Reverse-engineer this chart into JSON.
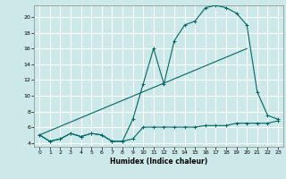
{
  "title": "",
  "xlabel": "Humidex (Indice chaleur)",
  "bg_color": "#cce8e8",
  "grid_color": "#ffffff",
  "line_color": "#006666",
  "xlim": [
    -0.5,
    23.5
  ],
  "ylim": [
    3.5,
    21.5
  ],
  "yticks": [
    4,
    6,
    8,
    10,
    12,
    14,
    16,
    18,
    20
  ],
  "xticks": [
    0,
    1,
    2,
    3,
    4,
    5,
    6,
    7,
    8,
    9,
    10,
    11,
    12,
    13,
    14,
    15,
    16,
    17,
    18,
    19,
    20,
    21,
    22,
    23
  ],
  "series1_x": [
    0,
    1,
    2,
    3,
    4,
    5,
    6,
    7,
    8,
    9,
    10,
    11,
    12,
    13,
    14,
    15,
    16,
    17,
    18,
    19,
    20,
    21,
    22,
    23
  ],
  "series1_y": [
    5.0,
    4.2,
    4.5,
    5.2,
    4.8,
    5.2,
    5.0,
    4.2,
    4.2,
    4.5,
    6.0,
    6.0,
    6.0,
    6.0,
    6.0,
    6.0,
    6.2,
    6.2,
    6.2,
    6.5,
    6.5,
    6.5,
    6.5,
    6.8
  ],
  "series2_x": [
    0,
    1,
    2,
    3,
    4,
    5,
    6,
    7,
    8,
    9,
    10,
    11,
    12,
    13,
    14,
    15,
    16,
    17,
    18,
    19,
    20,
    21,
    22,
    23
  ],
  "series2_y": [
    5.0,
    4.2,
    4.5,
    5.2,
    4.8,
    5.2,
    5.0,
    4.2,
    4.2,
    7.0,
    11.5,
    16.0,
    11.5,
    17.0,
    19.0,
    19.5,
    21.2,
    21.5,
    21.2,
    20.5,
    19.0,
    10.5,
    7.5,
    7.0
  ],
  "series3_x": [
    0,
    20
  ],
  "series3_y": [
    5.0,
    16.0
  ]
}
